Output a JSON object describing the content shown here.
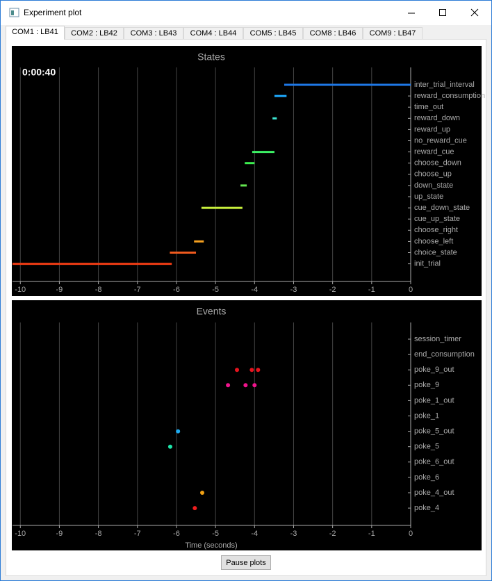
{
  "window": {
    "title": "Experiment plot"
  },
  "tabs": [
    "COM1 : LB41",
    "COM2 : LB42",
    "COM3 : LB43",
    "COM4 : LB44",
    "COM5 : LB45",
    "COM8 : LB46",
    "COM9 : LB47"
  ],
  "chart_data": [
    {
      "type": "timeline",
      "title": "States",
      "annotation": "0:00:40",
      "categories": [
        "inter_trial_interval",
        "reward_consumption",
        "time_out",
        "reward_down",
        "reward_up",
        "no_reward_cue",
        "reward_cue",
        "choose_down",
        "choose_up",
        "down_state",
        "up_state",
        "cue_down_state",
        "cue_up_state",
        "choose_right",
        "choose_left",
        "choice_state",
        "init_trial"
      ],
      "segments": [
        {
          "state": "inter_trial_interval",
          "start": -3.24,
          "end": 0,
          "color": "#1e78e6"
        },
        {
          "state": "reward_consumption",
          "start": -3.49,
          "end": -3.18,
          "color": "#1eaaff"
        },
        {
          "state": "reward_down",
          "start": -3.54,
          "end": -3.43,
          "color": "#3ce6d2"
        },
        {
          "state": "reward_cue",
          "start": -4.06,
          "end": -3.49,
          "color": "#3cf064"
        },
        {
          "state": "choose_down",
          "start": -4.25,
          "end": -4.0,
          "color": "#3cf050"
        },
        {
          "state": "down_state",
          "start": -4.36,
          "end": -4.2,
          "color": "#64e650"
        },
        {
          "state": "cue_down_state",
          "start": -5.36,
          "end": -4.31,
          "color": "#c8f03c"
        },
        {
          "state": "choose_left",
          "start": -5.55,
          "end": -5.3,
          "color": "#f5a020"
        },
        {
          "state": "choice_state",
          "start": -6.17,
          "end": -5.5,
          "color": "#f05a1e"
        },
        {
          "state": "init_trial",
          "start": -10.2,
          "end": -6.12,
          "color": "#f03c14"
        }
      ],
      "xlim": [
        -10.2,
        0
      ],
      "xticks": [
        -10,
        -9,
        -8,
        -7,
        -6,
        -5,
        -4,
        -3,
        -2,
        -1,
        0
      ],
      "grid": true
    },
    {
      "type": "scatter",
      "title": "Events",
      "xlabel": "Time (seconds)",
      "categories": [
        "session_timer",
        "end_consumption",
        "poke_9_out",
        "poke_9",
        "poke_1_out",
        "poke_1",
        "poke_5_out",
        "poke_5",
        "poke_6_out",
        "poke_6",
        "poke_4_out",
        "poke_4"
      ],
      "series": [
        {
          "category": "poke_9_out",
          "color": "#e6141e",
          "x": [
            -4.45,
            -4.07,
            -3.91
          ]
        },
        {
          "category": "poke_9",
          "color": "#f0148c",
          "x": [
            -4.68,
            -4.23,
            -4.0
          ]
        },
        {
          "category": "poke_5_out",
          "color": "#1eaaf0",
          "x": [
            -5.96
          ]
        },
        {
          "category": "poke_5",
          "color": "#1ee6aa",
          "x": [
            -6.16
          ]
        },
        {
          "category": "poke_4_out",
          "color": "#f0a014",
          "x": [
            -5.34
          ]
        },
        {
          "category": "poke_4",
          "color": "#f01e1e",
          "x": [
            -5.53
          ]
        }
      ],
      "xlim": [
        -10.2,
        0
      ],
      "xticks": [
        -10,
        -9,
        -8,
        -7,
        -6,
        -5,
        -4,
        -3,
        -2,
        -1,
        0
      ],
      "grid": true
    }
  ],
  "button": "Pause plots"
}
